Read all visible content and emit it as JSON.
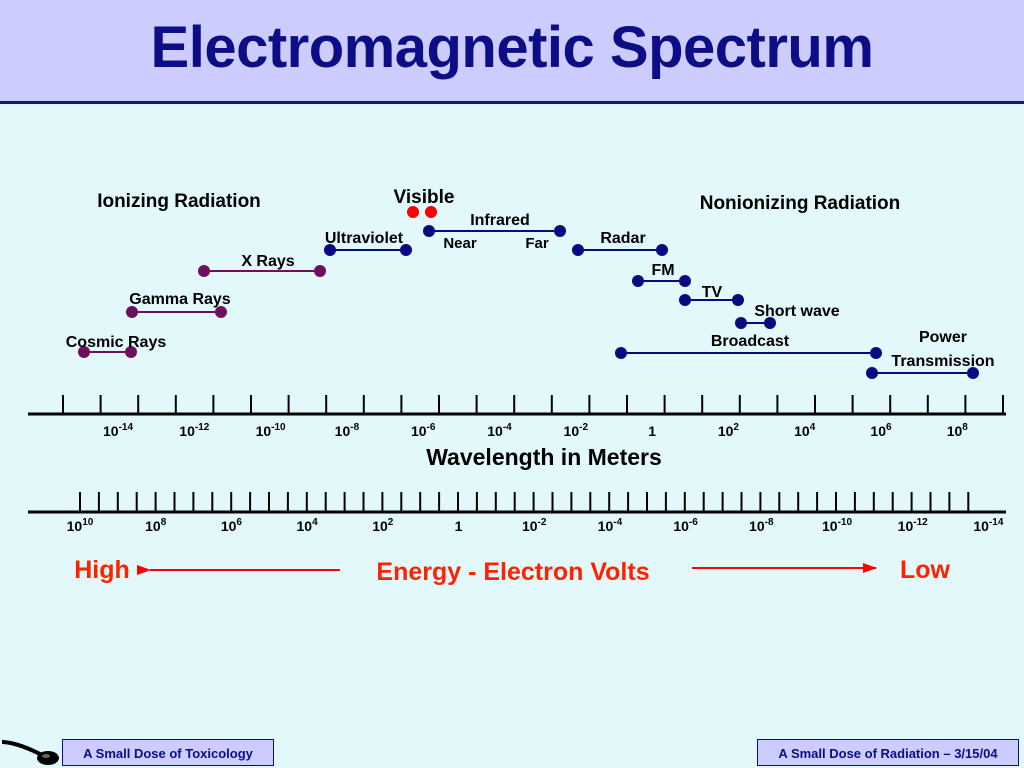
{
  "title": "Electromagnetic Spectrum",
  "headings": {
    "ionizing": "Ionizing Radiation",
    "nonionizing": "Nonionizing Radiation"
  },
  "bands": [
    {
      "label": "Visible"
    },
    {
      "label": "Infrared"
    },
    {
      "label": "Near"
    },
    {
      "label": "Far"
    },
    {
      "label": "Ultraviolet"
    },
    {
      "label": "X Rays"
    },
    {
      "label": "Gamma Rays"
    },
    {
      "label": "Cosmic Rays"
    },
    {
      "label": "Radar"
    },
    {
      "label": "FM"
    },
    {
      "label": "TV"
    },
    {
      "label": "Short wave"
    },
    {
      "label": "Broadcast"
    },
    {
      "label": "Power"
    },
    {
      "label": "Transmission"
    }
  ],
  "wavelength_axis": {
    "label": "Wavelength in Meters",
    "ticks": [
      {
        "base": "10",
        "exp": "-14"
      },
      {
        "base": "10",
        "exp": "-12"
      },
      {
        "base": "10",
        "exp": "-10"
      },
      {
        "base": "10",
        "exp": "-8"
      },
      {
        "base": "10",
        "exp": "-6"
      },
      {
        "base": "10",
        "exp": "-4"
      },
      {
        "base": "10",
        "exp": "-2"
      },
      {
        "base": "1",
        "exp": ""
      },
      {
        "base": "10",
        "exp": "2"
      },
      {
        "base": "10",
        "exp": "4"
      },
      {
        "base": "10",
        "exp": "6"
      },
      {
        "base": "10",
        "exp": "8"
      }
    ]
  },
  "energy_axis": {
    "label": "Energy - Electron Volts",
    "high": "High",
    "low": "Low",
    "ticks": [
      {
        "base": "10",
        "exp": "10"
      },
      {
        "base": "10",
        "exp": "8"
      },
      {
        "base": "10",
        "exp": "6"
      },
      {
        "base": "10",
        "exp": "4"
      },
      {
        "base": "10",
        "exp": "2"
      },
      {
        "base": "1",
        "exp": ""
      },
      {
        "base": "10",
        "exp": "-2"
      },
      {
        "base": "10",
        "exp": "-4"
      },
      {
        "base": "10",
        "exp": "-6"
      },
      {
        "base": "10",
        "exp": "-8"
      },
      {
        "base": "10",
        "exp": "-10"
      },
      {
        "base": "10",
        "exp": "-12"
      },
      {
        "base": "10",
        "exp": "-14"
      }
    ]
  },
  "footer": {
    "left": "A Small Dose of Toxicology",
    "right": "A Small Dose of Radiation – 3/15/04"
  },
  "colors": {
    "title": "#0d0d86",
    "ionizing": "#6e1060",
    "nonionizing": "#0a0a80",
    "visible": "#ff0000",
    "energy": "#ff2200",
    "background": "#e2f8fa",
    "header": "#ccccff"
  },
  "icons": {
    "logo": "spoon-icon"
  }
}
